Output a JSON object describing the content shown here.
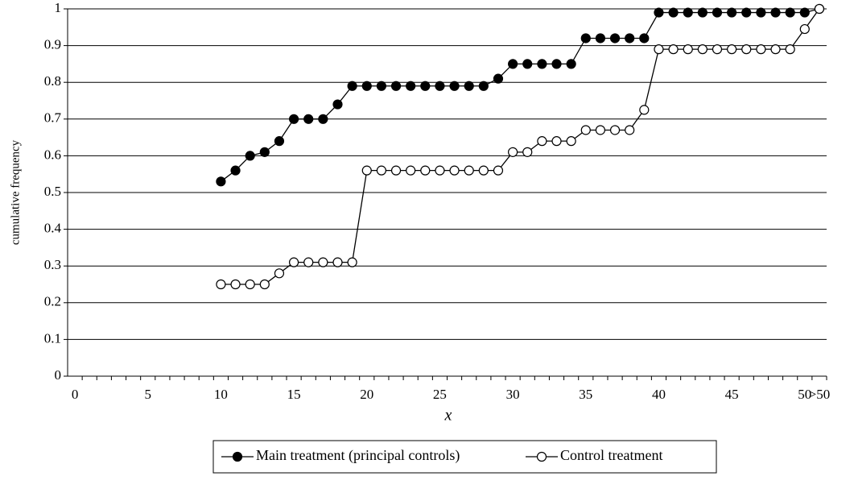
{
  "chart_data": {
    "type": "line",
    "x_label": "x",
    "y_label": "cumulative frequency",
    "categories": [
      "0",
      null,
      null,
      null,
      null,
      "5",
      null,
      null,
      null,
      null,
      "10",
      null,
      null,
      null,
      null,
      "15",
      null,
      null,
      null,
      null,
      "20",
      null,
      null,
      null,
      null,
      "25",
      null,
      null,
      null,
      null,
      "30",
      null,
      null,
      null,
      null,
      "35",
      null,
      null,
      null,
      null,
      "40",
      null,
      null,
      null,
      null,
      "45",
      null,
      null,
      null,
      null,
      "50",
      ">50"
    ],
    "series": [
      {
        "name": "Main treatment (principal controls)",
        "color": "#000000",
        "marker_fill": "#000000",
        "values": [
          null,
          null,
          null,
          null,
          null,
          null,
          null,
          null,
          null,
          null,
          0.53,
          0.56,
          0.6,
          0.61,
          0.64,
          0.7,
          0.7,
          0.7,
          0.74,
          0.79,
          0.79,
          0.79,
          0.79,
          0.79,
          0.79,
          0.79,
          0.79,
          0.79,
          0.79,
          0.81,
          0.85,
          0.85,
          0.85,
          0.85,
          0.85,
          0.92,
          0.92,
          0.92,
          0.92,
          0.92,
          0.99,
          0.99,
          0.99,
          0.99,
          0.99,
          0.99,
          0.99,
          0.99,
          0.99,
          0.99,
          0.99,
          1
        ]
      },
      {
        "name": "Control treatment",
        "color": "#000000",
        "marker_fill": "#ffffff",
        "values": [
          null,
          null,
          null,
          null,
          null,
          null,
          null,
          null,
          null,
          null,
          0.25,
          0.25,
          0.25,
          0.25,
          0.28,
          0.31,
          0.31,
          0.31,
          0.31,
          0.31,
          0.56,
          0.56,
          0.56,
          0.56,
          0.56,
          0.56,
          0.56,
          0.56,
          0.56,
          0.56,
          0.61,
          0.61,
          0.64,
          0.64,
          0.64,
          0.67,
          0.67,
          0.67,
          0.67,
          0.725,
          0.89,
          0.89,
          0.89,
          0.89,
          0.89,
          0.89,
          0.89,
          0.89,
          0.89,
          0.89,
          0.945,
          1
        ]
      }
    ],
    "ylim": [
      0,
      1
    ],
    "yticks": [
      0,
      0.1,
      0.2,
      0.3,
      0.4,
      0.5,
      0.6,
      0.7,
      0.8,
      0.9,
      1
    ],
    "grid": true,
    "legend": "bottom"
  }
}
